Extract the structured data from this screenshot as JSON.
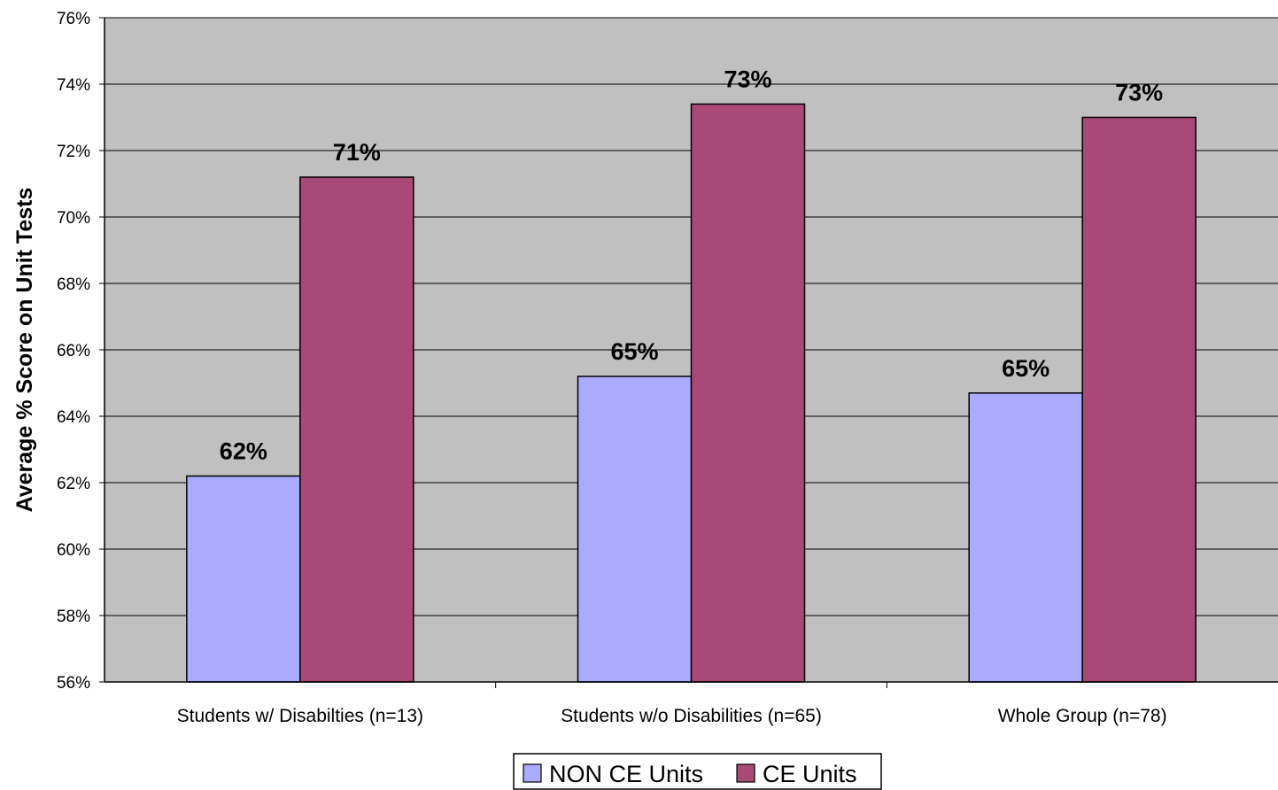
{
  "chart_data": {
    "type": "bar",
    "title": "",
    "xlabel": "",
    "ylabel": "Average % Score on Unit Tests",
    "categories": [
      "Students w/ Disabilties (n=13)",
      "Students w/o Disabilities (n=65)",
      "Whole Group (n=78)"
    ],
    "series": [
      {
        "name": "NON CE Units",
        "values": [
          62.2,
          65.2,
          64.7
        ],
        "labels": [
          "62%",
          "65%",
          "65%"
        ],
        "color": "#aaaaff"
      },
      {
        "name": "CE Units",
        "values": [
          71.2,
          73.4,
          73.0
        ],
        "labels": [
          "71%",
          "73%",
          "73%"
        ],
        "color": "#a94975"
      }
    ],
    "ylim": [
      56,
      76
    ],
    "yticks": [
      56,
      58,
      60,
      62,
      64,
      66,
      68,
      70,
      72,
      74,
      76
    ],
    "ytick_labels": [
      "56%",
      "58%",
      "60%",
      "62%",
      "64%",
      "66%",
      "68%",
      "70%",
      "72%",
      "74%",
      "76%"
    ],
    "grid": true,
    "plot_background": "#c0c0c0",
    "legend": "bottom-center"
  }
}
